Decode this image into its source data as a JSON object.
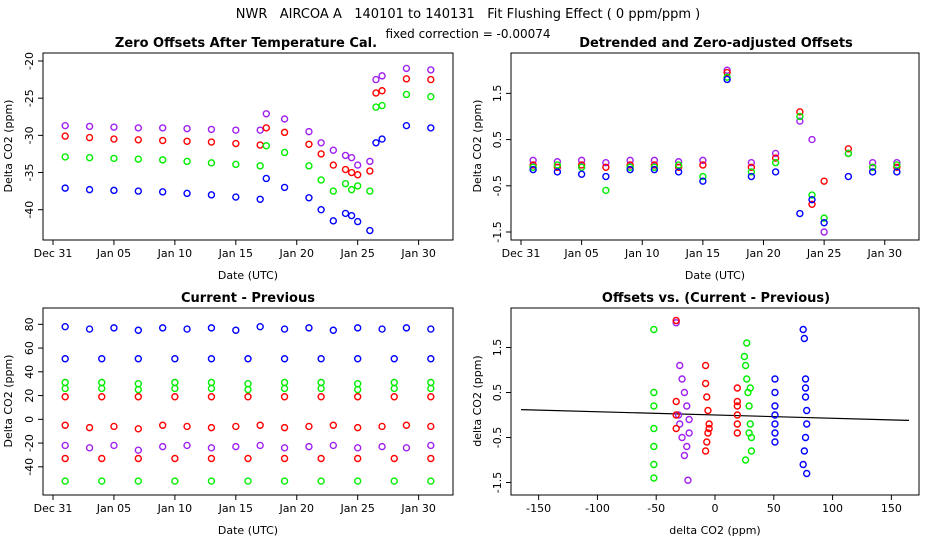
{
  "figure": {
    "title": "NWR   AIRCOA A   140101 to 140131   Fit Flushing Effect ( 0 ppm/ppm )",
    "subtitle": "fixed correction = -0.00074"
  },
  "colors": {
    "blue": "#0000ff",
    "red": "#ff0000",
    "green": "#00ee00",
    "purple": "#a020f0",
    "line": "#000000"
  },
  "chart_data": [
    {
      "id": "p1",
      "type": "scatter",
      "title": "Zero Offsets After Temperature Cal.",
      "xlabel": "Date (UTC)",
      "ylabel": "Delta CO2 (ppm)",
      "xlim": [
        31,
        63
      ],
      "ylim": [
        -43,
        -20
      ],
      "xticks": [
        31,
        36,
        41,
        46,
        51,
        56,
        61
      ],
      "xticklabels": [
        "Dec 31",
        "Jan 05",
        "Jan 10",
        "Jan 15",
        "Jan 20",
        "Jan 25",
        "Jan 30"
      ],
      "yticks": [
        -40,
        -35,
        -30,
        -25,
        -20
      ],
      "yticklabels": [
        "-40",
        "-35",
        "-30",
        "-25",
        "-20"
      ],
      "series": [
        {
          "name": "purple",
          "color": "#a020f0",
          "x": [
            32,
            34,
            36,
            38,
            40,
            42,
            44,
            46,
            48,
            48.5,
            50,
            52,
            53,
            54,
            55,
            55.5,
            56,
            57,
            57.5,
            58,
            60,
            62
          ],
          "y": [
            -28.7,
            -28.8,
            -28.9,
            -29.0,
            -29.0,
            -29.1,
            -29.2,
            -29.3,
            -29.3,
            -27.1,
            -27.8,
            -29.5,
            -31,
            -32,
            -32.7,
            -33,
            -34,
            -33.5,
            -22.5,
            -22,
            -21,
            -21.2
          ]
        },
        {
          "name": "red",
          "color": "#ff0000",
          "x": [
            32,
            34,
            36,
            38,
            40,
            42,
            44,
            46,
            48,
            48.5,
            50,
            52,
            53,
            54,
            55,
            55.5,
            56,
            57,
            57.5,
            58,
            60,
            62
          ],
          "y": [
            -30.1,
            -30.3,
            -30.5,
            -30.6,
            -30.7,
            -30.8,
            -30.9,
            -31.1,
            -31.3,
            -29.0,
            -29.6,
            -31.2,
            -32.5,
            -34,
            -34.6,
            -35,
            -35.3,
            -34.8,
            -24.3,
            -24,
            -22.4,
            -22.5
          ]
        },
        {
          "name": "green",
          "color": "#00ee00",
          "x": [
            32,
            34,
            36,
            38,
            40,
            42,
            44,
            46,
            48,
            48.5,
            50,
            52,
            53,
            54,
            55,
            55.5,
            56,
            57,
            57.5,
            58,
            60,
            62
          ],
          "y": [
            -32.9,
            -33.0,
            -33.1,
            -33.2,
            -33.3,
            -33.5,
            -33.7,
            -33.9,
            -34.1,
            -31.4,
            -32.3,
            -34.1,
            -36,
            -37.5,
            -36.5,
            -37.3,
            -36.8,
            -37.5,
            -26.2,
            -26,
            -24.5,
            -24.8
          ]
        },
        {
          "name": "blue",
          "color": "#0000ff",
          "x": [
            32,
            34,
            36,
            38,
            40,
            42,
            44,
            46,
            48,
            48.5,
            50,
            52,
            53,
            54,
            55,
            55.5,
            56,
            57,
            57.5,
            58,
            60,
            62
          ],
          "y": [
            -37.1,
            -37.3,
            -37.4,
            -37.5,
            -37.6,
            -37.8,
            -38.0,
            -38.3,
            -38.6,
            -35.8,
            -37.0,
            -38.4,
            -40,
            -41.5,
            -40.5,
            -40.8,
            -41.6,
            -42.8,
            -31,
            -30.5,
            -28.7,
            -29
          ]
        }
      ]
    },
    {
      "id": "p2",
      "type": "scatter",
      "title": "Detrended and Zero-adjusted Offsets",
      "xlabel": "Date (UTC)",
      "ylabel": "Delta CO2 (ppm)",
      "xlim": [
        31,
        63
      ],
      "ylim": [
        -1.5,
        2.2
      ],
      "xticks": [
        31,
        36,
        41,
        46,
        51,
        56,
        61
      ],
      "xticklabels": [
        "Dec 31",
        "Jan 05",
        "Jan 10",
        "Jan 15",
        "Jan 20",
        "Jan 25",
        "Jan 30"
      ],
      "yticks": [
        -1.5,
        -0.5,
        0.5,
        1.5
      ],
      "yticklabels": [
        "-1.5",
        "-0.5",
        "0.5",
        "1.5"
      ],
      "series": [
        {
          "name": "purple",
          "color": "#a020f0",
          "x": [
            32,
            34,
            36,
            38,
            40,
            42,
            44,
            46,
            48,
            50,
            52,
            54,
            55,
            56,
            58,
            60,
            62
          ],
          "y": [
            0.05,
            0.02,
            0.05,
            0.0,
            0.05,
            0.05,
            0.02,
            0.05,
            2.0,
            0.0,
            0.2,
            0.9,
            0.5,
            -1.5,
            0.2,
            0.0,
            0.0
          ]
        },
        {
          "name": "red",
          "color": "#ff0000",
          "x": [
            32,
            34,
            36,
            38,
            40,
            42,
            44,
            46,
            48,
            50,
            52,
            54,
            55,
            56,
            58,
            60,
            62
          ],
          "y": [
            -0.05,
            -0.1,
            -0.05,
            -0.1,
            -0.05,
            -0.05,
            -0.1,
            -0.05,
            1.95,
            -0.1,
            0.1,
            1.1,
            -0.9,
            -0.4,
            0.3,
            -0.1,
            -0.1
          ]
        },
        {
          "name": "green",
          "color": "#00ee00",
          "x": [
            32,
            34,
            36,
            38,
            40,
            42,
            44,
            46,
            48,
            50,
            52,
            54,
            55,
            56,
            58,
            60,
            62
          ],
          "y": [
            -0.1,
            -0.05,
            -0.1,
            -0.6,
            -0.1,
            -0.1,
            -0.05,
            -0.3,
            1.85,
            -0.2,
            0.0,
            1.0,
            -0.7,
            -1.2,
            0.2,
            -0.1,
            -0.05
          ]
        },
        {
          "name": "blue",
          "color": "#0000ff",
          "x": [
            32,
            34,
            36,
            38,
            40,
            42,
            44,
            46,
            48,
            50,
            52,
            54,
            55,
            56,
            58,
            60,
            62
          ],
          "y": [
            -0.15,
            -0.2,
            -0.25,
            -0.3,
            -0.15,
            -0.15,
            -0.2,
            -0.4,
            1.8,
            -0.3,
            -0.2,
            -1.1,
            -0.8,
            -1.3,
            -0.3,
            -0.2,
            -0.2
          ]
        }
      ]
    },
    {
      "id": "p3",
      "type": "scatter",
      "title": "Current - Previous",
      "xlabel": "Date (UTC)",
      "ylabel": "Delta CO2 (ppm)",
      "xlim": [
        31,
        63
      ],
      "ylim": [
        -57,
        87
      ],
      "xticks": [
        31,
        36,
        41,
        46,
        51,
        56,
        61
      ],
      "xticklabels": [
        "Dec 31",
        "Jan 05",
        "Jan 10",
        "Jan 15",
        "Jan 20",
        "Jan 25",
        "Jan 30"
      ],
      "yticks": [
        -40,
        -20,
        0,
        20,
        40,
        60,
        80
      ],
      "yticklabels": [
        "-40",
        "-20",
        "0",
        "20",
        "40",
        "60",
        "80"
      ],
      "series": [
        {
          "name": "blue",
          "color": "#0000ff",
          "x": [
            32,
            34,
            36,
            38,
            40,
            42,
            44,
            46,
            48,
            50,
            52,
            54,
            56,
            58,
            60,
            62
          ],
          "y": [
            78,
            76,
            77,
            75,
            77,
            76,
            77,
            75,
            78,
            76,
            77,
            75,
            77,
            76,
            77,
            76
          ]
        },
        {
          "name": "blue-2",
          "color": "#0000ff",
          "x": [
            32,
            35,
            38,
            41,
            44,
            47,
            50,
            53,
            56,
            59,
            62
          ],
          "y": [
            51,
            51,
            51,
            51,
            51,
            51,
            51,
            51,
            51,
            51,
            51
          ]
        },
        {
          "name": "green",
          "color": "#00ee00",
          "x": [
            32,
            35,
            38,
            41,
            44,
            47,
            50,
            53,
            56,
            59,
            62
          ],
          "y": [
            31,
            31,
            30,
            31,
            31,
            30,
            31,
            31,
            30,
            31,
            31
          ]
        },
        {
          "name": "green-2",
          "color": "#00ee00",
          "x": [
            32,
            35,
            38,
            41,
            44,
            47,
            50,
            53,
            56,
            59,
            62
          ],
          "y": [
            26,
            26,
            25,
            26,
            26,
            25,
            26,
            26,
            25,
            26,
            26
          ]
        },
        {
          "name": "red",
          "color": "#ff0000",
          "x": [
            32,
            35,
            38,
            41,
            44,
            47,
            50,
            53,
            56,
            59,
            62
          ],
          "y": [
            19,
            19,
            19,
            19,
            19,
            19,
            19,
            19,
            19,
            19,
            19
          ]
        },
        {
          "name": "red-2",
          "color": "#ff0000",
          "x": [
            32,
            34,
            36,
            38,
            40,
            42,
            44,
            46,
            48,
            50,
            52,
            54,
            56,
            58,
            60,
            62
          ],
          "y": [
            -5,
            -7,
            -6,
            -8,
            -5,
            -6,
            -7,
            -6,
            -5,
            -7,
            -6,
            -5,
            -7,
            -6,
            -5,
            -6
          ]
        },
        {
          "name": "purple",
          "color": "#a020f0",
          "x": [
            32,
            34,
            36,
            38,
            40,
            42,
            44,
            46,
            48,
            50,
            52,
            54,
            56,
            58,
            60,
            62
          ],
          "y": [
            -22,
            -24,
            -22,
            -26,
            -23,
            -22,
            -24,
            -23,
            -22,
            -24,
            -23,
            -22,
            -24,
            -23,
            -24,
            -22
          ]
        },
        {
          "name": "red-3",
          "color": "#ff0000",
          "x": [
            32,
            35,
            38,
            41,
            44,
            47,
            50,
            53,
            56,
            59,
            62
          ],
          "y": [
            -33,
            -33,
            -33,
            -33,
            -33,
            -33,
            -33,
            -33,
            -33,
            -33,
            -33
          ]
        },
        {
          "name": "green-3",
          "color": "#00ee00",
          "x": [
            32,
            35,
            38,
            41,
            44,
            47,
            50,
            53,
            56,
            59,
            62
          ],
          "y": [
            -52,
            -52,
            -52,
            -52,
            -52,
            -52,
            -52,
            -52,
            -52,
            -52,
            -52
          ]
        }
      ]
    },
    {
      "id": "p4",
      "type": "scatter",
      "title": "Offsets vs. (Current - Previous)",
      "xlabel": "delta CO2 (ppm)",
      "ylabel": "delta CO2 (ppm)",
      "xlim": [
        -165,
        165
      ],
      "ylim": [
        -1.6,
        2.2
      ],
      "xticks": [
        -150,
        -100,
        -50,
        0,
        50,
        100,
        150
      ],
      "xticklabels": [
        "-150",
        "-100",
        "-50",
        "0",
        "50",
        "100",
        "150"
      ],
      "yticks": [
        -1.5,
        -0.5,
        0.5,
        1.5
      ],
      "yticklabels": [
        "-1.5",
        "-0.5",
        "0.5",
        "1.5"
      ],
      "fit_line": {
        "x": [
          -165,
          165
        ],
        "y": [
          0.12,
          -0.12
        ]
      },
      "series": [
        {
          "name": "green",
          "color": "#00ee00",
          "x": [
            -52,
            -52,
            -52,
            -52,
            -52,
            -52,
            -52,
            25,
            26,
            27,
            28,
            29,
            30,
            31,
            31,
            30,
            29,
            26,
            27
          ],
          "y": [
            1.9,
            -1.4,
            -1.1,
            -0.7,
            -0.3,
            0.2,
            0.5,
            1.3,
            1.1,
            0.8,
            0.5,
            0.2,
            -0.2,
            -0.5,
            -0.8,
            0.6,
            -0.4,
            -1.0,
            1.6
          ]
        },
        {
          "name": "purple",
          "color": "#a020f0",
          "x": [
            -33,
            -30,
            -28,
            -26,
            -24,
            -22,
            -22,
            -24,
            -26,
            -28,
            -30,
            -31,
            -23
          ],
          "y": [
            2.05,
            1.1,
            0.8,
            0.5,
            0.2,
            -0.1,
            -0.4,
            -0.7,
            -0.9,
            -0.5,
            -0.2,
            0.0,
            -1.45
          ]
        },
        {
          "name": "red",
          "color": "#ff0000",
          "x": [
            -33,
            -8,
            -8,
            -7,
            -6,
            -5,
            -6,
            -7,
            -8,
            -5,
            19,
            19,
            19,
            19,
            19,
            19,
            -33,
            -33,
            -33
          ],
          "y": [
            2.1,
            1.1,
            0.7,
            0.4,
            0.1,
            -0.2,
            -0.4,
            -0.6,
            -0.8,
            -0.3,
            0.6,
            0.3,
            0.0,
            -0.2,
            -0.4,
            0.2,
            0.3,
            0.0,
            -0.3
          ]
        },
        {
          "name": "blue",
          "color": "#0000ff",
          "x": [
            51,
            51,
            51,
            51,
            51,
            51,
            51,
            75,
            76,
            77,
            77,
            78,
            78,
            77,
            76,
            75,
            78,
            77
          ],
          "y": [
            0.8,
            0.5,
            0.2,
            0.0,
            -0.2,
            -0.4,
            -0.6,
            1.9,
            1.7,
            0.8,
            0.4,
            0.1,
            -0.2,
            -0.5,
            -0.8,
            -1.1,
            -1.3,
            0.6
          ]
        }
      ]
    }
  ]
}
